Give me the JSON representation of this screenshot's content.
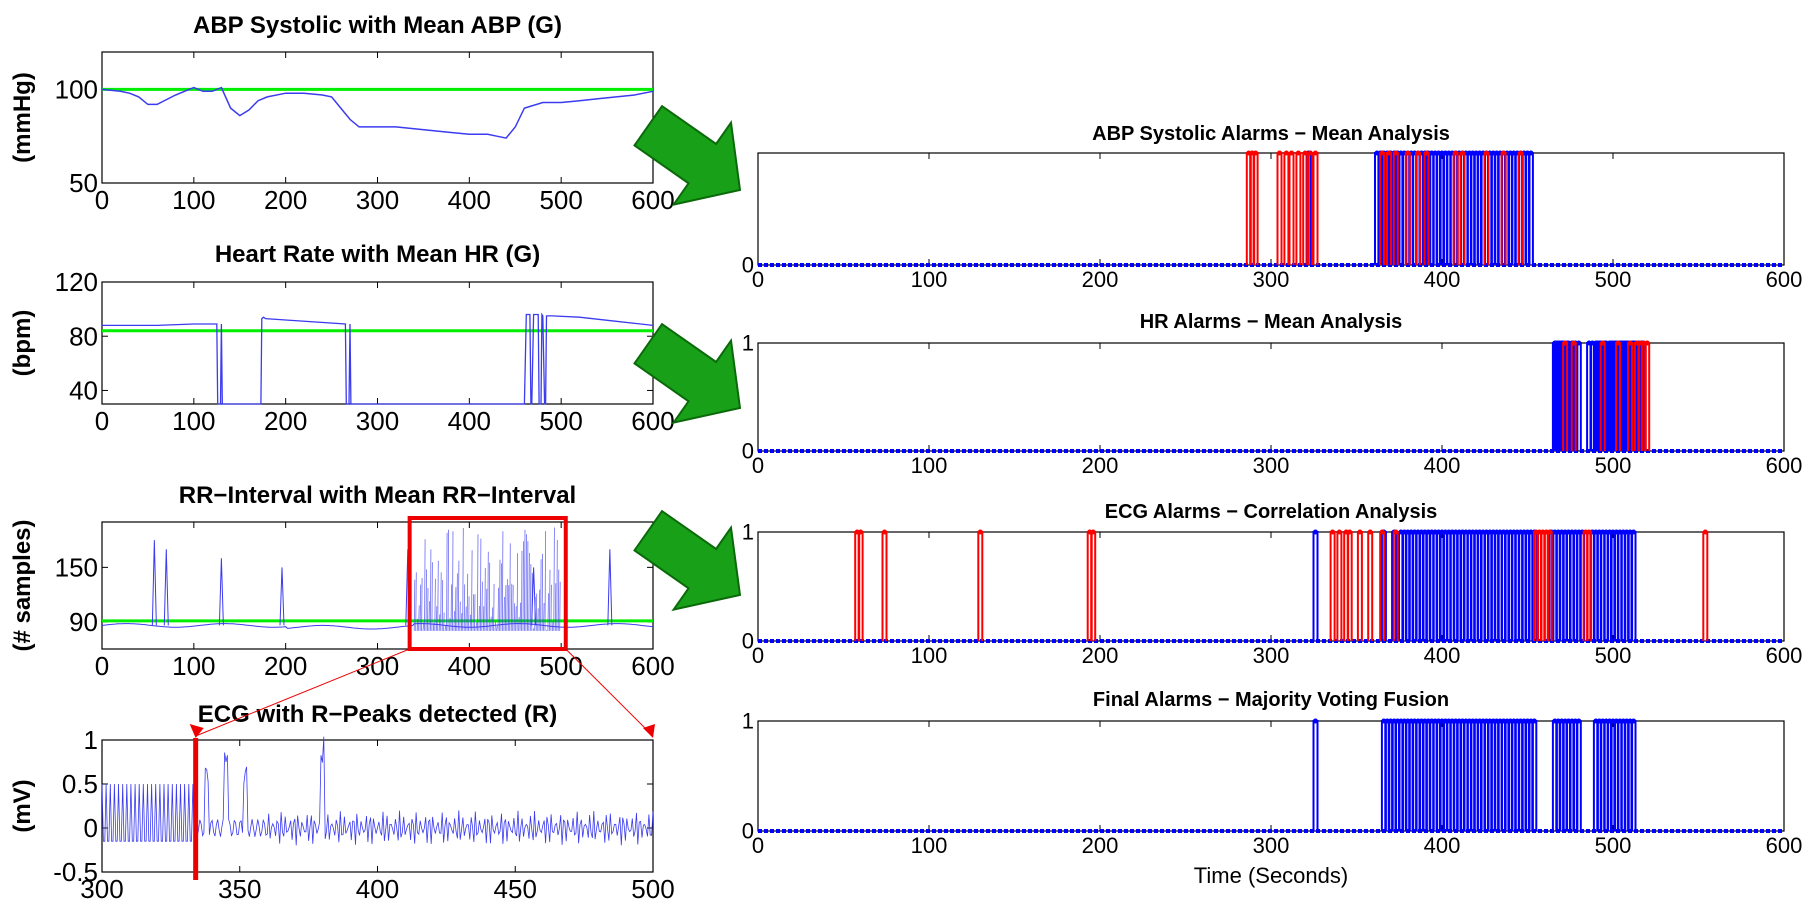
{
  "colors": {
    "signal": "#3b3bf0",
    "mean": "#00ee00",
    "red_alarm": "#ff0000",
    "blue_alarm": "#0000ff",
    "arrow": "#18a018",
    "arrow_stroke": "#0a6a0a",
    "zoom_box": "#ee0000"
  },
  "chart_data": [
    {
      "id": "abp",
      "type": "line",
      "title": "ABP Systolic with Mean ABP (G)",
      "ylabel": "(mmHg)",
      "xlabel": "",
      "xlim": [
        0,
        600
      ],
      "ylim": [
        50,
        120
      ],
      "xticks": [
        0,
        100,
        200,
        300,
        400,
        500,
        600
      ],
      "yticks": [
        50,
        100
      ],
      "mean_line": 100,
      "series": [
        {
          "x": [
            0,
            20,
            30,
            40,
            50,
            60,
            80,
            100,
            110,
            120,
            130,
            140,
            150,
            160,
            170,
            180,
            200,
            220,
            240,
            250,
            260,
            270,
            280,
            300,
            320,
            340,
            360,
            380,
            400,
            420,
            430,
            440,
            450,
            460,
            480,
            500,
            520,
            540,
            560,
            580,
            600
          ],
          "values": [
            100,
            99,
            98,
            96,
            92,
            92,
            97,
            101,
            99,
            99,
            101,
            90,
            86,
            89,
            94,
            96,
            98,
            98,
            97,
            96,
            90,
            84,
            80,
            80,
            80,
            79,
            78,
            77,
            76,
            76,
            75,
            74,
            80,
            90,
            93,
            93,
            94,
            95,
            96,
            97,
            99
          ]
        }
      ]
    },
    {
      "id": "hr",
      "type": "line",
      "title": "Heart Rate with Mean HR (G)",
      "ylabel": "(bpm)",
      "xlabel": "",
      "xlim": [
        0,
        600
      ],
      "ylim": [
        30,
        120
      ],
      "xticks": [
        0,
        100,
        200,
        300,
        400,
        500,
        600
      ],
      "yticks": [
        40,
        80,
        120
      ],
      "mean_line": 84,
      "series": [
        {
          "x": [
            0,
            30,
            60,
            100,
            125,
            126,
            129,
            130,
            131,
            173,
            174,
            176,
            178,
            200,
            265,
            266,
            269,
            270,
            271,
            460,
            462,
            466,
            467,
            468,
            470,
            475,
            476,
            478,
            479,
            480,
            482,
            483,
            484,
            490,
            520,
            560,
            600
          ],
          "values": [
            88,
            88,
            88,
            89,
            89,
            30,
            30,
            89,
            30,
            30,
            93,
            94,
            93,
            92,
            89,
            30,
            30,
            89,
            30,
            30,
            96,
            96,
            30,
            30,
            96,
            96,
            30,
            30,
            96,
            95,
            30,
            30,
            95,
            95,
            94,
            91,
            88
          ]
        }
      ]
    },
    {
      "id": "rr",
      "type": "line",
      "title": "RR−Interval with Mean RR−Interval",
      "ylabel": "(# samples)",
      "xlabel": "",
      "xlim": [
        0,
        600
      ],
      "ylim": [
        60,
        200
      ],
      "xticks": [
        0,
        100,
        200,
        300,
        400,
        500,
        600
      ],
      "yticks": [
        90,
        150
      ],
      "mean_line": 91,
      "spikes": [
        [
          57,
          180
        ],
        [
          70,
          170
        ],
        [
          130,
          160
        ],
        [
          196,
          150
        ],
        [
          333,
          170
        ],
        [
          470,
          150
        ],
        [
          553,
          170
        ]
      ],
      "burst": [
        340,
        500
      ],
      "zoom_range": [
        335,
        505
      ]
    },
    {
      "id": "ecg",
      "type": "line",
      "title": "ECG with R−Peaks detected (R)",
      "ylabel": "(mV)",
      "xlabel": "",
      "xlim": [
        300,
        500
      ],
      "ylim": [
        -0.5,
        1
      ],
      "xticks": [
        300,
        350,
        400,
        450,
        500
      ],
      "ytick_labels": [
        "1",
        "0.5",
        "0",
        "-0.5"
      ],
      "yticks": [
        1,
        0.5,
        0,
        -0.5
      ],
      "marker_x": 334
    },
    {
      "id": "abp_alarms",
      "type": "line",
      "title": "ABP Systolic Alarms − Mean Analysis",
      "ylabel": "",
      "xlabel": "",
      "xlim": [
        0,
        600
      ],
      "ylim": [
        0,
        1
      ],
      "xticks": [
        0,
        100,
        200,
        300,
        400,
        500,
        600
      ],
      "yticks": [
        0
      ],
      "red": [
        287,
        289,
        291,
        305,
        309,
        312,
        316,
        320,
        323,
        326,
        365,
        369,
        373,
        380,
        386,
        391,
        408,
        412,
        426,
        436,
        446
      ],
      "blue": [
        322,
        362,
        364,
        366,
        368,
        370,
        372,
        374,
        376,
        378,
        380,
        382,
        384,
        386,
        388,
        390,
        392,
        394,
        396,
        398,
        400,
        402,
        404,
        406,
        408,
        410,
        412,
        414,
        416,
        418,
        420,
        422,
        424,
        426,
        428,
        430,
        432,
        434,
        436,
        438,
        440,
        442,
        444,
        446,
        448,
        450,
        452
      ]
    },
    {
      "id": "hr_alarms",
      "type": "line",
      "title": "HR Alarms − Mean Analysis",
      "ylabel": "",
      "xlabel": "",
      "xlim": [
        0,
        600
      ],
      "ylim": [
        0,
        1
      ],
      "xticks": [
        0,
        100,
        200,
        300,
        400,
        500,
        600
      ],
      "yticks": [
        0,
        1
      ],
      "red": [
        472,
        477,
        494,
        503,
        510,
        514,
        516,
        518,
        520
      ],
      "blue": [
        466,
        467,
        468,
        469,
        470,
        471,
        473,
        474,
        476,
        478,
        480,
        486,
        488,
        490,
        491,
        492,
        493,
        495,
        496,
        498,
        499,
        500,
        501,
        502,
        504,
        505,
        506,
        507,
        508,
        509,
        511,
        512,
        513,
        515,
        517
      ]
    },
    {
      "id": "ecg_alarms",
      "type": "line",
      "title": "ECG Alarms − Correlation Analysis",
      "ylabel": "",
      "xlabel": "",
      "xlim": [
        0,
        600
      ],
      "ylim": [
        0,
        1
      ],
      "xticks": [
        0,
        100,
        200,
        300,
        400,
        500,
        600
      ],
      "yticks": [
        0,
        1
      ],
      "red": [
        58,
        60,
        74,
        130,
        194,
        196,
        336,
        340,
        344,
        346,
        352,
        358,
        365,
        373,
        455,
        457,
        459,
        461,
        463,
        484,
        486,
        554
      ],
      "blue": [
        326,
        366,
        372,
        376,
        378,
        380,
        382,
        384,
        386,
        388,
        390,
        392,
        394,
        396,
        398,
        400,
        402,
        404,
        406,
        408,
        410,
        412,
        414,
        416,
        418,
        420,
        422,
        424,
        426,
        428,
        430,
        432,
        434,
        436,
        438,
        440,
        442,
        444,
        446,
        448,
        450,
        452,
        454,
        464,
        466,
        468,
        470,
        472,
        474,
        476,
        478,
        480,
        482,
        488,
        490,
        492,
        494,
        496,
        498,
        500,
        502,
        504,
        506,
        508,
        510,
        512
      ]
    },
    {
      "id": "final_alarms",
      "type": "line",
      "title": "Final Alarms − Majority Voting Fusion",
      "ylabel": "",
      "xlabel": "Time (Seconds)",
      "xlim": [
        0,
        600
      ],
      "ylim": [
        0,
        1
      ],
      "xticks": [
        0,
        100,
        200,
        300,
        400,
        500,
        600
      ],
      "yticks": [
        0,
        1
      ],
      "red": [],
      "blue": [
        326,
        366,
        368,
        370,
        372,
        374,
        376,
        378,
        380,
        382,
        384,
        386,
        388,
        390,
        392,
        394,
        396,
        398,
        400,
        402,
        404,
        406,
        408,
        410,
        412,
        414,
        416,
        418,
        420,
        422,
        424,
        426,
        428,
        430,
        432,
        434,
        436,
        438,
        440,
        442,
        444,
        446,
        448,
        450,
        452,
        454,
        466,
        468,
        470,
        472,
        474,
        476,
        478,
        480,
        490,
        492,
        494,
        496,
        498,
        500,
        502,
        504,
        506,
        508,
        510,
        512
      ]
    }
  ]
}
